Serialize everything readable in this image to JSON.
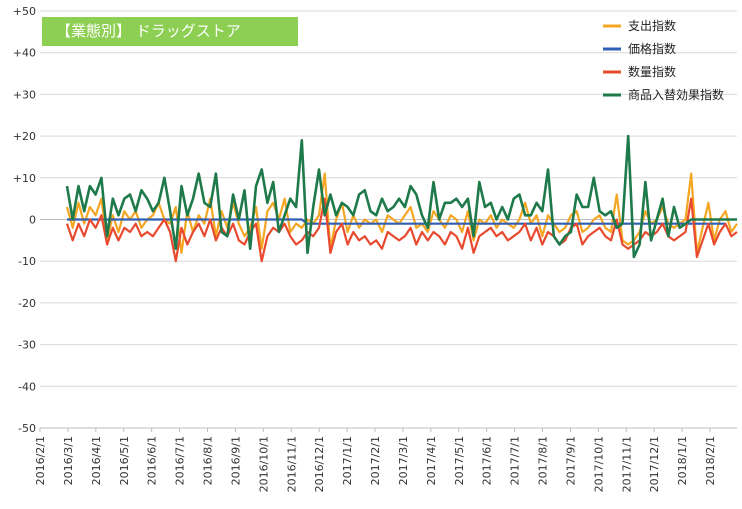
{
  "chart_data": {
    "type": "line",
    "title": "【業態別】 ドラッグストア",
    "ylim": [
      -50,
      50
    ],
    "yticks": [
      "+50",
      "+40",
      "+30",
      "+20",
      "+10",
      "0",
      "-10",
      "-20",
      "-30",
      "-40",
      "-50"
    ],
    "x_labels": [
      "2016/2/1",
      "2016/3/1",
      "2016/4/1",
      "2016/5/1",
      "2016/6/1",
      "2016/7/1",
      "2016/8/1",
      "2016/9/1",
      "2016/10/1",
      "2016/11/1",
      "2016/12/1",
      "2017/1/1",
      "2017/2/1",
      "2017/3/1",
      "2017/4/1",
      "2017/5/1",
      "2017/6/1",
      "2017/7/1",
      "2017/8/1",
      "2017/9/1",
      "2017/10/1",
      "2017/11/1",
      "2017/12/1",
      "2018/1/1",
      "2018/2/1"
    ],
    "grid": true,
    "legend_position": "top-right",
    "series": [
      {
        "name": "支出指数",
        "color": "#f5a623",
        "values": [
          3,
          -2,
          4,
          -1,
          3,
          1,
          5,
          -5,
          1,
          -3,
          2,
          0,
          2,
          -2,
          0,
          1,
          4,
          0,
          -1,
          3,
          -8,
          2,
          -3,
          1,
          -1,
          5,
          -4,
          2,
          -2,
          4,
          -1,
          -4,
          -2,
          3,
          -7,
          2,
          4,
          0,
          5,
          -3,
          -1,
          -2,
          0,
          -1,
          1,
          11,
          -7,
          0,
          4,
          -3,
          1,
          -2,
          0,
          -1,
          0,
          -3,
          1,
          0,
          -1,
          1,
          3,
          -2,
          -1,
          -3,
          2,
          0,
          -2,
          1,
          0,
          -3,
          2,
          -5,
          0,
          -1,
          1,
          -2,
          0,
          -1,
          -2,
          0,
          4,
          -1,
          1,
          -4,
          1,
          -1,
          -3,
          -2,
          1,
          2,
          -3,
          -2,
          0,
          1,
          -2,
          -3,
          6,
          -5,
          -6,
          -5,
          -3,
          2,
          -1,
          0,
          3,
          -1,
          -2,
          -1,
          0,
          11,
          -8,
          -2,
          4,
          -5,
          0,
          2,
          -3,
          -1
        ]
      },
      {
        "name": "価格指数",
        "color": "#2f5fb4",
        "values": [
          0,
          0,
          0,
          0,
          0,
          0,
          0,
          0,
          0,
          0,
          0,
          0,
          0,
          0,
          0,
          0,
          0,
          0,
          0,
          0,
          0,
          0,
          0,
          0,
          0,
          0,
          0,
          0,
          0,
          0,
          0,
          0,
          0,
          0,
          0,
          0,
          0,
          0,
          0,
          0,
          0,
          0,
          -1,
          -1,
          -1,
          -1,
          -1,
          -1,
          -1,
          -1,
          -1,
          -1,
          -1,
          -1,
          -1,
          -1,
          -1,
          -1,
          -1,
          -1,
          -1,
          -1,
          -1,
          -1,
          -1,
          -1,
          -1,
          -1,
          -1,
          -1,
          -1,
          -1,
          -1,
          -1,
          -1,
          -1,
          -1,
          -1,
          -1,
          -1,
          -1,
          -1,
          -1,
          -1,
          -1,
          -1,
          -1,
          -1,
          -1,
          -1,
          -1,
          -1,
          -1,
          -1,
          -1,
          -1,
          -1,
          -1,
          -1,
          -1,
          -1,
          -1,
          -1,
          -1,
          -1,
          -1,
          -1,
          -1,
          -1,
          -1,
          -1,
          -1,
          -1,
          -1,
          -1,
          -1
        ]
      },
      {
        "name": "数量指数",
        "color": "#e84a2f",
        "values": [
          -1,
          -5,
          -1,
          -4,
          0,
          -2,
          1,
          -6,
          -2,
          -5,
          -2,
          -3,
          -1,
          -4,
          -3,
          -4,
          -2,
          0,
          -3,
          -10,
          -2,
          -6,
          -3,
          -1,
          -4,
          0,
          -5,
          -2,
          -4,
          -1,
          -5,
          -6,
          -3,
          -1,
          -10,
          -4,
          -2,
          -3,
          -1,
          -4,
          -6,
          -5,
          -3,
          -4,
          -2,
          5,
          -8,
          -3,
          -1,
          -6,
          -3,
          -5,
          -4,
          -6,
          -5,
          -7,
          -3,
          -4,
          -5,
          -4,
          -2,
          -6,
          -3,
          -5,
          -3,
          -4,
          -6,
          -3,
          -4,
          -7,
          -2,
          -8,
          -4,
          -3,
          -2,
          -4,
          -3,
          -5,
          -4,
          -3,
          -1,
          -5,
          -2,
          -6,
          -3,
          -4,
          -6,
          -5,
          -2,
          -1,
          -6,
          -4,
          -3,
          -2,
          -4,
          -5,
          0,
          -6,
          -7,
          -6,
          -5,
          -3,
          -4,
          -3,
          -1,
          -4,
          -5,
          -4,
          -3,
          5,
          -9,
          -5,
          -1,
          -6,
          -3,
          -1,
          -4,
          -3
        ]
      },
      {
        "name": "商品入替効果指数",
        "color": "#1e7a4a",
        "values": [
          8,
          0,
          8,
          2,
          8,
          6,
          10,
          -4,
          5,
          1,
          5,
          6,
          2,
          7,
          5,
          2,
          4,
          10,
          2,
          -7,
          8,
          1,
          5,
          11,
          4,
          3,
          11,
          -3,
          -4,
          6,
          0,
          7,
          -7,
          8,
          12,
          4,
          9,
          -3,
          1,
          5,
          3,
          19,
          -8,
          3,
          12,
          1,
          6,
          1,
          4,
          3,
          1,
          6,
          7,
          2,
          1,
          5,
          2,
          3,
          5,
          3,
          8,
          6,
          1,
          -2,
          9,
          0,
          4,
          4,
          5,
          3,
          5,
          -4,
          9,
          3,
          4,
          0,
          3,
          0,
          5,
          6,
          1,
          1,
          4,
          2,
          12,
          -4,
          -6,
          -4,
          -3,
          6,
          3,
          3,
          10,
          2,
          1,
          2,
          -2,
          -1,
          20,
          -9,
          -6,
          9,
          -5,
          0,
          5,
          -4,
          3,
          -2,
          -1,
          0,
          0,
          0,
          0,
          0,
          0,
          0,
          0,
          0
        ]
      }
    ]
  }
}
